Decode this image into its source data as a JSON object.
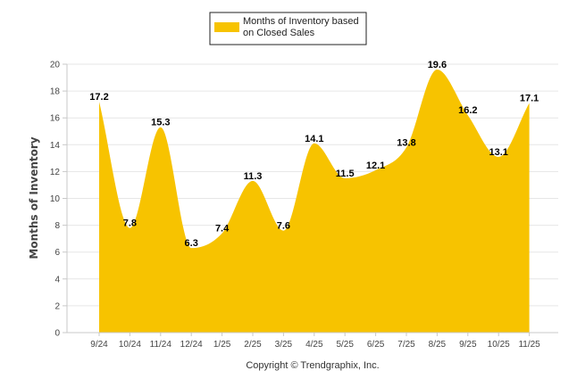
{
  "chart_data": {
    "type": "area",
    "title": "",
    "xlabel": "",
    "ylabel": "Months of Inventory",
    "ylim": [
      0,
      20
    ],
    "yticks": [
      0,
      2,
      4,
      6,
      8,
      10,
      12,
      14,
      16,
      18,
      20
    ],
    "grid": true,
    "legend_position": "top-center",
    "categories": [
      "9/24",
      "10/24",
      "11/24",
      "12/24",
      "1/25",
      "2/25",
      "3/25",
      "4/25",
      "5/25",
      "6/25",
      "7/25",
      "8/25",
      "9/25",
      "10/25",
      "11/25"
    ],
    "series": [
      {
        "name": "Months of Inventory based on Closed Sales",
        "legend_lines": [
          "Months of Inventory based",
          "on Closed Sales"
        ],
        "color": "#F7C300",
        "values": [
          17.2,
          7.8,
          15.3,
          6.3,
          7.4,
          11.3,
          7.6,
          14.1,
          11.5,
          12.1,
          13.8,
          19.6,
          16.2,
          13.1,
          17.1
        ],
        "labels": [
          "17.2",
          "7.8",
          "15.3",
          "6.3",
          "7.4",
          "11.3",
          "7.6",
          "14.1",
          "11.5",
          "12.1",
          "13.8",
          "19.6",
          "16.2",
          "13.1",
          "17.1"
        ]
      }
    ],
    "copyright": "Copyright © Trendgraphix, Inc."
  },
  "colors": {
    "fill": "#F7C300",
    "grid": "#e6e6e6",
    "axis": "#c8c8c8"
  }
}
